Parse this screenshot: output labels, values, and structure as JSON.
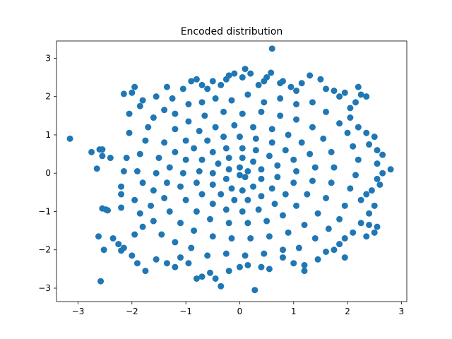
{
  "chart_data": {
    "type": "scatter",
    "title": "Encoded distribution",
    "xlabel": "",
    "ylabel": "",
    "xlim": [
      -3.4,
      3.1
    ],
    "ylim": [
      -3.35,
      3.45
    ],
    "xticks": [
      -3,
      -2,
      -1,
      0,
      1,
      2,
      3
    ],
    "yticks": [
      -3,
      -2,
      -1,
      0,
      1,
      2,
      3
    ],
    "grid": false,
    "legend": "none",
    "series": [
      {
        "name": "",
        "color": "#1f77b4",
        "marker": "circle",
        "distribution": "approximately standard bivariate normal, about 3000 points",
        "points": [
          [
            -3.15,
            0.9
          ],
          [
            -2.75,
            0.55
          ],
          [
            -2.6,
            0.62
          ],
          [
            -2.55,
            0.62
          ],
          [
            -2.55,
            0.45
          ],
          [
            -2.4,
            0.4
          ],
          [
            -2.65,
            0.12
          ],
          [
            -2.55,
            -0.92
          ],
          [
            -2.48,
            -0.95
          ],
          [
            -2.45,
            -0.97
          ],
          [
            -2.62,
            -1.65
          ],
          [
            -2.52,
            -2.0
          ],
          [
            -2.58,
            -2.82
          ],
          [
            -2.35,
            -1.7
          ],
          [
            -2.25,
            -1.85
          ],
          [
            -2.2,
            -2.02
          ],
          [
            -2.15,
            -1.95
          ],
          [
            -2.2,
            -0.55
          ],
          [
            -2.2,
            -0.9
          ],
          [
            -2.2,
            -0.35
          ],
          [
            -2.15,
            0.05
          ],
          [
            -2.1,
            0.4
          ],
          [
            -2.05,
            1.05
          ],
          [
            -2.05,
            1.55
          ],
          [
            -2.15,
            2.07
          ],
          [
            -2.0,
            2.1
          ],
          [
            -1.95,
            2.25
          ],
          [
            -1.85,
            1.75
          ],
          [
            -1.8,
            1.9
          ],
          [
            -1.55,
            2.0
          ],
          [
            -1.35,
            2.25
          ],
          [
            -1.25,
            1.95
          ],
          [
            -1.05,
            2.2
          ],
          [
            -0.9,
            2.4
          ],
          [
            -0.8,
            2.45
          ],
          [
            -0.7,
            2.3
          ],
          [
            -0.6,
            2.2
          ],
          [
            -0.5,
            2.4
          ],
          [
            -0.35,
            2.3
          ],
          [
            -0.25,
            2.45
          ],
          [
            -0.2,
            2.55
          ],
          [
            -0.1,
            2.6
          ],
          [
            0.05,
            2.5
          ],
          [
            0.1,
            2.72
          ],
          [
            0.2,
            2.6
          ],
          [
            0.35,
            2.3
          ],
          [
            0.45,
            2.4
          ],
          [
            0.5,
            2.5
          ],
          [
            0.58,
            2.62
          ],
          [
            0.6,
            3.25
          ],
          [
            0.75,
            2.35
          ],
          [
            0.8,
            2.4
          ],
          [
            0.95,
            2.25
          ],
          [
            1.05,
            2.15
          ],
          [
            1.3,
            2.55
          ],
          [
            1.15,
            2.35
          ],
          [
            1.5,
            2.45
          ],
          [
            1.6,
            2.2
          ],
          [
            1.75,
            2.15
          ],
          [
            1.85,
            2.0
          ],
          [
            1.95,
            2.1
          ],
          [
            2.05,
            1.7
          ],
          [
            2.15,
            1.85
          ],
          [
            2.2,
            2.25
          ],
          [
            2.25,
            2.05
          ],
          [
            2.35,
            2.0
          ],
          [
            2.05,
            1.45
          ],
          [
            2.2,
            1.2
          ],
          [
            2.35,
            1.05
          ],
          [
            2.5,
            0.95
          ],
          [
            2.4,
            0.75
          ],
          [
            2.55,
            0.6
          ],
          [
            2.65,
            0.48
          ],
          [
            2.55,
            0.25
          ],
          [
            2.8,
            0.1
          ],
          [
            2.65,
            0.0
          ],
          [
            2.55,
            -0.15
          ],
          [
            2.6,
            -0.3
          ],
          [
            2.45,
            -0.45
          ],
          [
            2.35,
            -0.55
          ],
          [
            2.25,
            -0.7
          ],
          [
            2.5,
            -0.85
          ],
          [
            2.4,
            -1.05
          ],
          [
            2.25,
            -1.3
          ],
          [
            2.4,
            -1.35
          ],
          [
            2.55,
            -1.4
          ],
          [
            2.5,
            -1.55
          ],
          [
            2.35,
            -1.65
          ],
          [
            2.1,
            -1.55
          ],
          [
            1.95,
            -1.7
          ],
          [
            1.85,
            -1.85
          ],
          [
            1.75,
            -2.0
          ],
          [
            1.95,
            -2.2
          ],
          [
            1.6,
            -2.05
          ],
          [
            1.45,
            -2.25
          ],
          [
            1.2,
            -2.4
          ],
          [
            1.2,
            -2.55
          ],
          [
            1.0,
            -2.35
          ],
          [
            0.8,
            -2.2
          ],
          [
            0.55,
            -2.5
          ],
          [
            0.4,
            -2.45
          ],
          [
            0.28,
            -3.05
          ],
          [
            0.15,
            -2.4
          ],
          [
            0.0,
            -2.45
          ],
          [
            -0.2,
            -2.55
          ],
          [
            -0.35,
            -2.95
          ],
          [
            -0.45,
            -2.75
          ],
          [
            -0.55,
            -2.6
          ],
          [
            -0.7,
            -2.7
          ],
          [
            -0.8,
            -2.75
          ],
          [
            -0.95,
            -2.35
          ],
          [
            -1.1,
            -2.2
          ],
          [
            -1.2,
            -2.45
          ],
          [
            -1.35,
            -2.35
          ],
          [
            -1.55,
            -2.25
          ],
          [
            -1.75,
            -2.55
          ],
          [
            -1.9,
            -2.35
          ],
          [
            -2.0,
            -2.15
          ],
          [
            -1.95,
            -1.6
          ],
          [
            -1.8,
            -1.4
          ],
          [
            -1.85,
            -1.05
          ],
          [
            -1.95,
            -0.7
          ],
          [
            -1.8,
            -0.25
          ],
          [
            -1.9,
            0.05
          ],
          [
            -1.85,
            0.5
          ],
          [
            -1.75,
            0.85
          ],
          [
            -1.7,
            1.2
          ],
          [
            -1.6,
            1.45
          ],
          [
            -1.4,
            1.65
          ],
          [
            -1.2,
            1.55
          ],
          [
            -0.95,
            1.8
          ],
          [
            -0.7,
            1.85
          ],
          [
            -0.45,
            1.95
          ],
          [
            -0.15,
            1.9
          ],
          [
            0.15,
            2.05
          ],
          [
            0.45,
            1.85
          ],
          [
            0.75,
            1.95
          ],
          [
            1.05,
            1.8
          ],
          [
            1.35,
            1.85
          ],
          [
            1.6,
            1.6
          ],
          [
            1.85,
            1.3
          ],
          [
            2.0,
            1.05
          ],
          [
            2.1,
            0.7
          ],
          [
            2.2,
            0.35
          ],
          [
            2.15,
            -0.05
          ],
          [
            2.05,
            -0.4
          ],
          [
            1.95,
            -0.85
          ],
          [
            1.85,
            -1.2
          ],
          [
            1.65,
            -1.45
          ],
          [
            1.4,
            -1.7
          ],
          [
            1.1,
            -1.95
          ],
          [
            0.8,
            -2.0
          ],
          [
            0.45,
            -2.1
          ],
          [
            0.1,
            -2.15
          ],
          [
            -0.25,
            -2.1
          ],
          [
            -0.6,
            -2.15
          ],
          [
            -0.9,
            -1.95
          ],
          [
            -1.2,
            -1.8
          ],
          [
            -1.45,
            -1.6
          ],
          [
            -1.6,
            -1.25
          ],
          [
            -1.65,
            -0.85
          ],
          [
            -1.6,
            -0.45
          ],
          [
            -1.55,
            0.0
          ],
          [
            -1.5,
            0.4
          ],
          [
            -1.4,
            0.8
          ],
          [
            -1.2,
            1.15
          ],
          [
            -0.95,
            1.35
          ],
          [
            -0.65,
            1.5
          ],
          [
            -0.3,
            1.6
          ],
          [
            0.05,
            1.55
          ],
          [
            0.4,
            1.6
          ],
          [
            0.75,
            1.5
          ],
          [
            1.05,
            1.4
          ],
          [
            1.35,
            1.2
          ],
          [
            1.55,
            0.9
          ],
          [
            1.7,
            0.55
          ],
          [
            1.75,
            0.15
          ],
          [
            1.7,
            -0.25
          ],
          [
            1.6,
            -0.65
          ],
          [
            1.45,
            -1.05
          ],
          [
            1.2,
            -1.35
          ],
          [
            0.9,
            -1.55
          ],
          [
            0.55,
            -1.65
          ],
          [
            0.2,
            -1.7
          ],
          [
            -0.15,
            -1.7
          ],
          [
            -0.5,
            -1.65
          ],
          [
            -0.85,
            -1.5
          ],
          [
            -1.1,
            -1.3
          ],
          [
            -1.3,
            -1.0
          ],
          [
            -1.4,
            -0.65
          ],
          [
            -1.35,
            -0.25
          ],
          [
            -1.3,
            0.15
          ],
          [
            -1.2,
            0.55
          ],
          [
            -1.0,
            0.85
          ],
          [
            -0.75,
            1.1
          ],
          [
            -0.45,
            1.2
          ],
          [
            -0.1,
            1.25
          ],
          [
            0.25,
            1.2
          ],
          [
            0.6,
            1.15
          ],
          [
            0.9,
            1.0
          ],
          [
            1.15,
            0.8
          ],
          [
            1.3,
            0.5
          ],
          [
            1.4,
            0.15
          ],
          [
            1.35,
            -0.2
          ],
          [
            1.25,
            -0.55
          ],
          [
            1.05,
            -0.85
          ],
          [
            0.8,
            -1.1
          ],
          [
            0.5,
            -1.25
          ],
          [
            0.15,
            -1.3
          ],
          [
            -0.2,
            -1.3
          ],
          [
            -0.55,
            -1.2
          ],
          [
            -0.8,
            -1.0
          ],
          [
            -1.0,
            -0.7
          ],
          [
            -1.1,
            -0.35
          ],
          [
            -1.05,
            0.0
          ],
          [
            -1.0,
            0.35
          ],
          [
            -0.85,
            0.65
          ],
          [
            -0.6,
            0.85
          ],
          [
            -0.3,
            0.95
          ],
          [
            0.0,
            0.95
          ],
          [
            0.3,
            0.9
          ],
          [
            0.6,
            0.8
          ],
          [
            0.85,
            0.6
          ],
          [
            1.0,
            0.35
          ],
          [
            1.05,
            0.05
          ],
          [
            1.0,
            -0.25
          ],
          [
            0.85,
            -0.55
          ],
          [
            0.65,
            -0.8
          ],
          [
            0.35,
            -0.95
          ],
          [
            0.05,
            -1.0
          ],
          [
            -0.25,
            -0.95
          ],
          [
            -0.5,
            -0.8
          ],
          [
            -0.7,
            -0.55
          ],
          [
            -0.8,
            -0.25
          ],
          [
            -0.75,
            0.05
          ],
          [
            -0.7,
            0.35
          ],
          [
            -0.5,
            0.55
          ],
          [
            -0.25,
            0.65
          ],
          [
            0.05,
            0.65
          ],
          [
            0.3,
            0.6
          ],
          [
            0.55,
            0.45
          ],
          [
            0.7,
            0.2
          ],
          [
            0.7,
            -0.1
          ],
          [
            0.6,
            -0.4
          ],
          [
            0.4,
            -0.6
          ],
          [
            0.15,
            -0.7
          ],
          [
            -0.1,
            -0.7
          ],
          [
            -0.35,
            -0.55
          ],
          [
            -0.5,
            -0.3
          ],
          [
            -0.5,
            0.0
          ],
          [
            -0.4,
            0.25
          ],
          [
            -0.2,
            0.4
          ],
          [
            0.05,
            0.4
          ],
          [
            0.25,
            0.3
          ],
          [
            0.4,
            0.1
          ],
          [
            0.4,
            -0.15
          ],
          [
            0.25,
            -0.35
          ],
          [
            0.05,
            -0.45
          ],
          [
            -0.15,
            -0.4
          ],
          [
            -0.25,
            -0.15
          ],
          [
            -0.2,
            0.1
          ],
          [
            0.0,
            0.15
          ],
          [
            0.15,
            0.05
          ],
          [
            0.1,
            -0.1
          ],
          [
            0.0,
            -0.05
          ]
        ]
      }
    ]
  }
}
